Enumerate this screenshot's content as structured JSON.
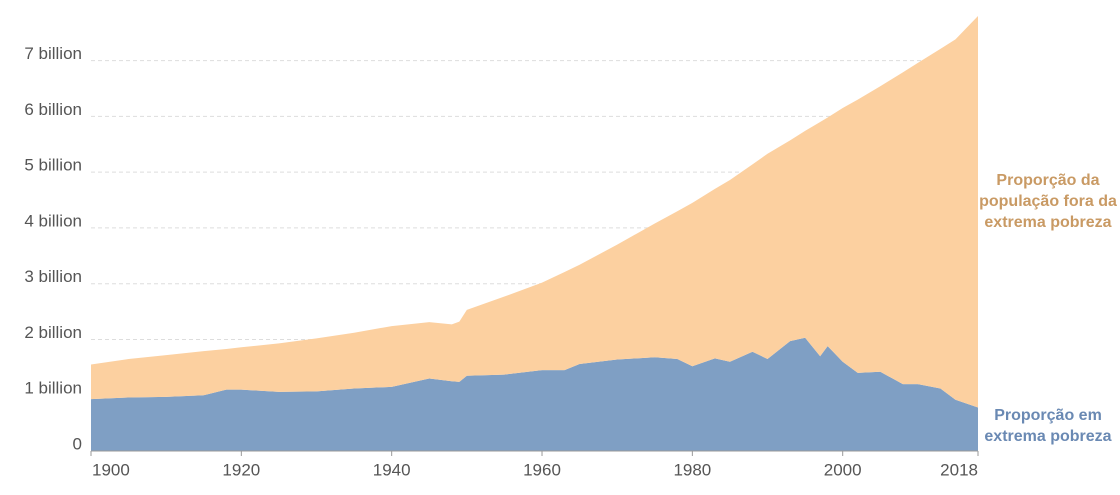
{
  "chart_data": {
    "type": "area",
    "stacked": true,
    "x": [
      1900,
      1905,
      1910,
      1915,
      1918,
      1920,
      1925,
      1930,
      1935,
      1940,
      1945,
      1948,
      1949,
      1950,
      1955,
      1960,
      1963,
      1965,
      1970,
      1975,
      1978,
      1980,
      1983,
      1985,
      1988,
      1990,
      1993,
      1995,
      1997,
      1998,
      2000,
      2002,
      2005,
      2008,
      2010,
      2013,
      2015,
      2018
    ],
    "series": [
      {
        "name": "Proporção em extrema pobreza",
        "color": "#7f9fc4",
        "values": [
          0.93,
          0.96,
          0.97,
          1.0,
          1.1,
          1.1,
          1.06,
          1.07,
          1.12,
          1.15,
          1.3,
          1.25,
          1.24,
          1.35,
          1.37,
          1.45,
          1.45,
          1.56,
          1.64,
          1.68,
          1.65,
          1.52,
          1.66,
          1.6,
          1.78,
          1.65,
          1.97,
          2.03,
          1.7,
          1.88,
          1.6,
          1.4,
          1.42,
          1.2,
          1.2,
          1.12,
          0.92,
          0.78
        ]
      },
      {
        "name": "Proporção da população fora da extrema pobreza",
        "color": "#fcd0a0",
        "values": [
          0.62,
          0.69,
          0.75,
          0.79,
          0.73,
          0.76,
          0.87,
          0.95,
          1.0,
          1.09,
          1.01,
          1.02,
          1.08,
          1.18,
          1.4,
          1.57,
          1.76,
          1.78,
          2.06,
          2.4,
          2.65,
          2.93,
          3.04,
          3.26,
          3.36,
          3.68,
          3.6,
          3.71,
          4.2,
          4.1,
          4.55,
          4.9,
          5.12,
          5.59,
          5.76,
          6.09,
          6.46,
          7.02
        ]
      }
    ],
    "xlim": [
      1900,
      2018
    ],
    "xticks": [
      1900,
      1920,
      1940,
      1960,
      1980,
      2000,
      2018
    ],
    "ylim": [
      0,
      7.8
    ],
    "yticks": [
      0,
      {
        "value": 1,
        "label": "1 billion"
      },
      {
        "value": 2,
        "label": "2 billion"
      },
      {
        "value": 3,
        "label": "3 billion"
      },
      {
        "value": 4,
        "label": "4 billion"
      },
      {
        "value": 5,
        "label": "5 billion"
      },
      {
        "value": 6,
        "label": "6 billion"
      },
      {
        "value": 7,
        "label": "7 billion"
      }
    ],
    "grid": true,
    "legend": "right"
  }
}
